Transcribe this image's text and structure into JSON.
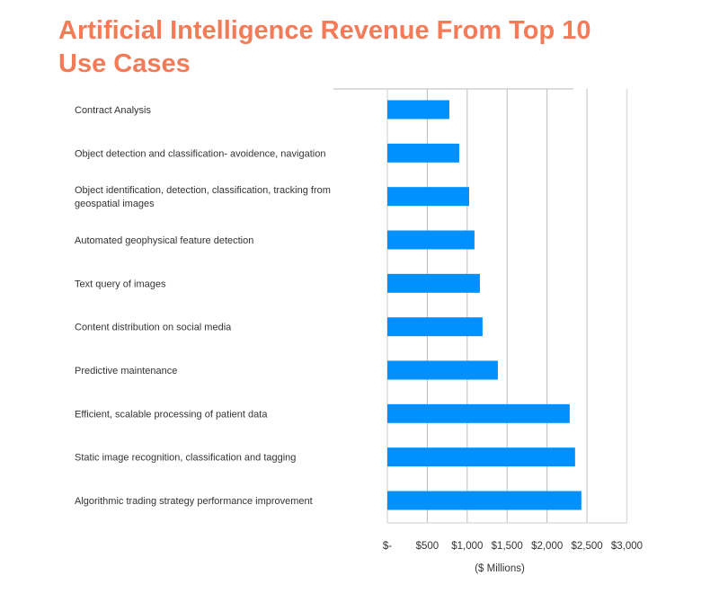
{
  "chart_data": {
    "type": "bar",
    "orientation": "horizontal",
    "title": "Artificial Intelligence Revenue From Top 10 Use Cases",
    "xlabel": "($ Millions)",
    "ylabel": "",
    "xlim": [
      0,
      3000
    ],
    "grid": true,
    "bar_color": "#0091ff",
    "title_color": "#f47b57",
    "x_ticks": [
      "$-",
      "$500",
      "$1,000",
      "$1,500",
      "$2,000",
      "$2,500",
      "$3,000"
    ],
    "categories": [
      [
        "Contract Analysis"
      ],
      [
        "Object detection and classification- avoidence, navigation"
      ],
      [
        "Object identification, detection, classification, tracking from",
        "geospatial images"
      ],
      [
        "Automated geophysical feature detection"
      ],
      [
        "Text query of images"
      ],
      [
        "Content distribution on social media"
      ],
      [
        "Predictive maintenance"
      ],
      [
        "Efficient, scalable processing of patient data"
      ],
      [
        "Static image recognition, classification and tagging"
      ],
      [
        "Algorithmic trading strategy performance improvement"
      ]
    ],
    "values": [
      776,
      900,
      1024,
      1091,
      1159,
      1192,
      1384,
      2284,
      2351,
      2430
    ]
  }
}
